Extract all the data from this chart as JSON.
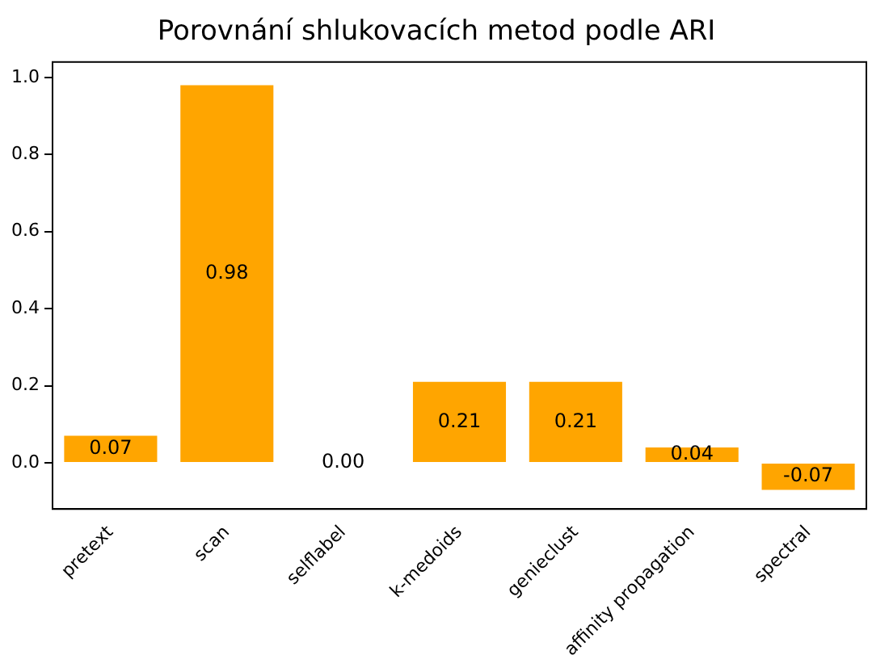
{
  "chart_data": {
    "type": "bar",
    "title": "Porovnání shlukovacích metod podle ARI",
    "categories": [
      "pretext",
      "scan",
      "selflabel",
      "k-medoids",
      "genieclust",
      "affinity propagation",
      "spectral"
    ],
    "values": [
      0.07,
      0.98,
      0.0,
      0.21,
      0.21,
      0.04,
      -0.07
    ],
    "value_labels": [
      "0.07",
      "0.98",
      "0.00",
      "0.21",
      "0.21",
      "0.04",
      "-0.07"
    ],
    "color": "#ffa500",
    "ylim": [
      -0.12,
      1.04
    ],
    "yticks": [
      {
        "value": 0,
        "label": "0.0"
      },
      {
        "value": 0.2,
        "label": "0.2"
      },
      {
        "value": 0.4,
        "label": "0.4"
      },
      {
        "value": 0.6,
        "label": "0.6"
      },
      {
        "value": 0.8,
        "label": "0.8"
      },
      {
        "value": 1,
        "label": "1.0"
      }
    ],
    "grid": false,
    "legend": false
  }
}
